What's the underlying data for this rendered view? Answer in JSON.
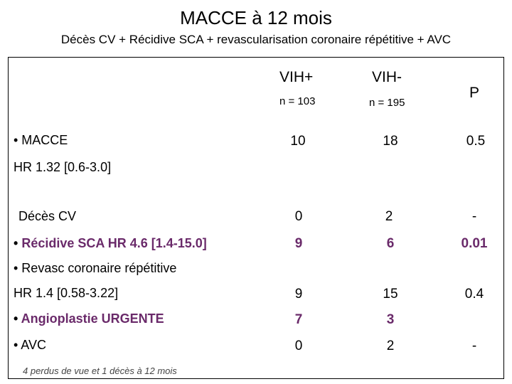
{
  "title": "MACCE à 12 mois",
  "subtitle": "Décès CV + Récidive SCA + revascularisation coronaire répétitive + AVC",
  "header": {
    "col1": "VIH+",
    "col1_n": "n = 103",
    "col2": "VIH-",
    "col2_n": "n = 195",
    "col3": "P"
  },
  "rows": [
    {
      "label": "• MACCE",
      "v1": "10",
      "v2": "18",
      "p": "0.5"
    },
    {
      "label": "HR 1.32 [0.6-3.0]"
    },
    {
      "label": "Décès CV",
      "v1": "0",
      "v2": "2",
      "p": "-"
    },
    {
      "label": "• Récidive SCA HR 4.6 [1.4-15.0]",
      "v1": "9",
      "v2": "6",
      "p": "0.01"
    },
    {
      "label": "• Revasc coronaire répétitive"
    },
    {
      "label": "HR 1.4 [0.58-3.22]",
      "v1": "9",
      "v2": "15",
      "p": "0.4"
    },
    {
      "label": "• Angioplastie URGENTE",
      "v1": "7",
      "v2": "3"
    },
    {
      "label": "• AVC",
      "v1": "0",
      "v2": "2",
      "p": "-"
    }
  ],
  "footnote": "4 perdus de vue et 1 décès à 12 mois",
  "colors": {
    "highlight": "#6a2a6a"
  }
}
